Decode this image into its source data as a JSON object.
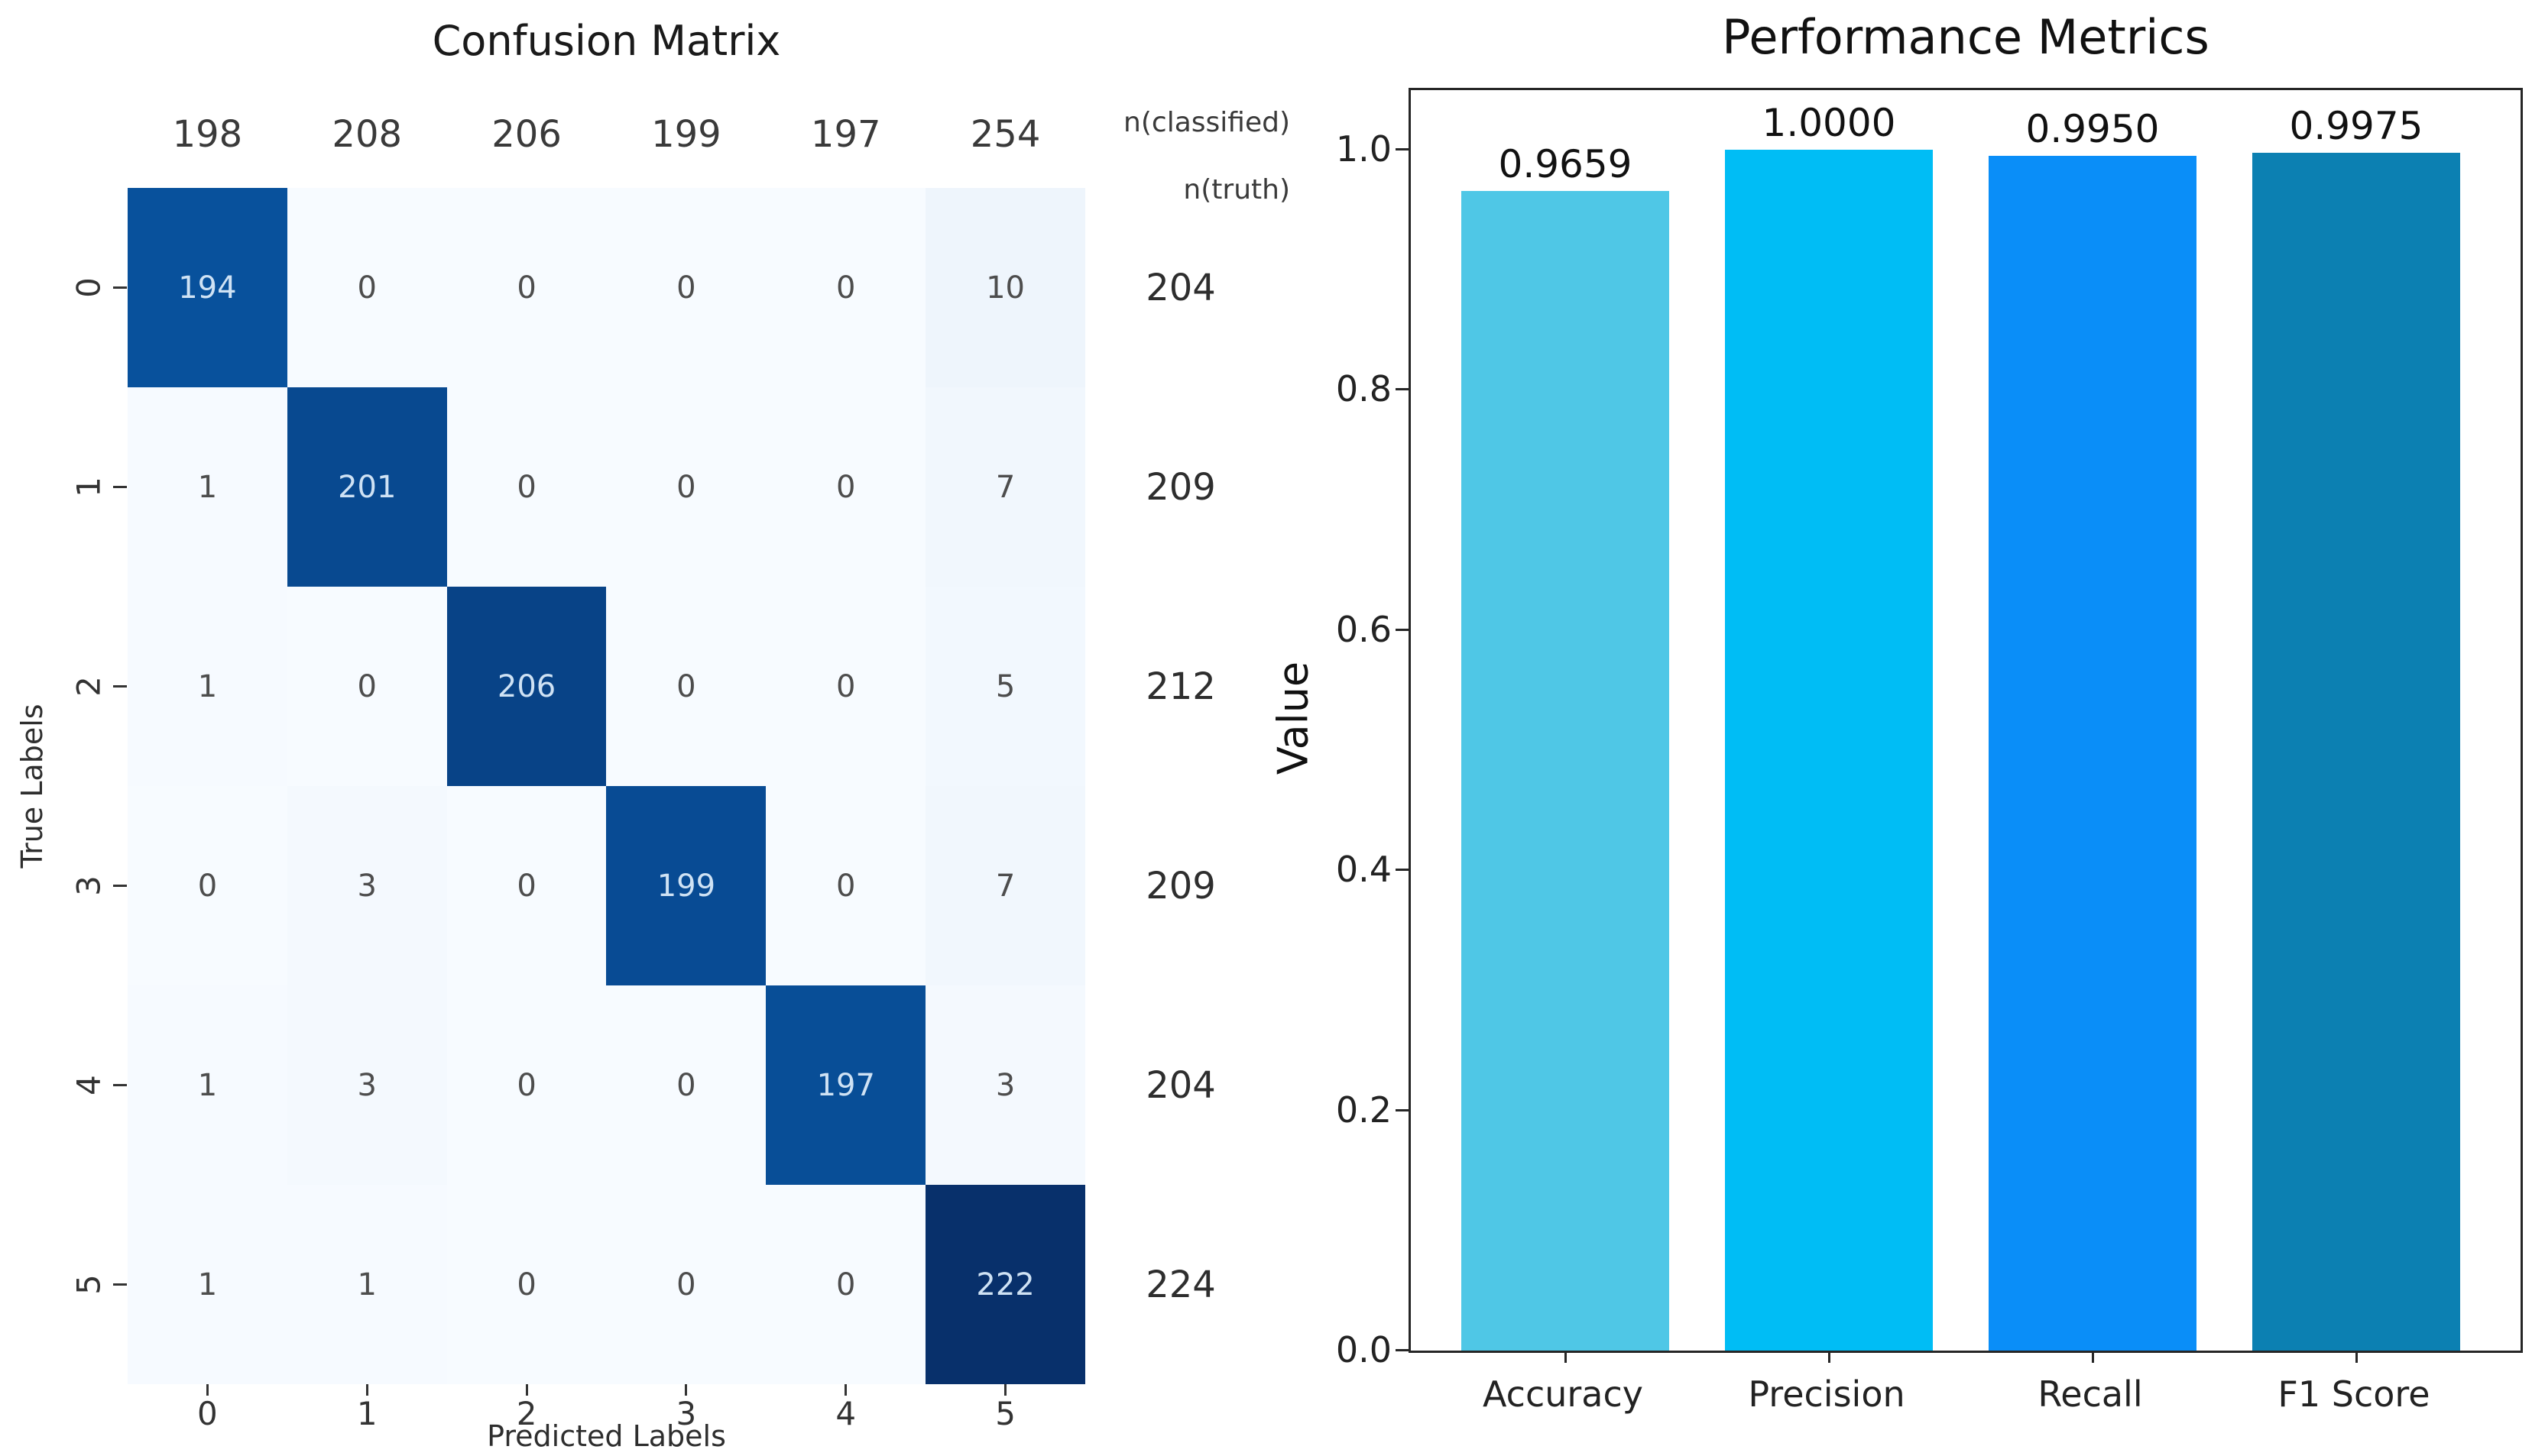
{
  "chart_data": [
    {
      "type": "heatmap",
      "title": "Confusion Matrix",
      "xlabel": "Predicted Labels",
      "ylabel": "True Labels",
      "col_totals_header": "n(classified)",
      "row_totals_header": "n(truth)",
      "x_tick_labels": [
        "0",
        "1",
        "2",
        "3",
        "4",
        "5"
      ],
      "y_tick_labels": [
        "0",
        "1",
        "2",
        "3",
        "4",
        "5"
      ],
      "col_totals": [
        198,
        208,
        206,
        199,
        197,
        254
      ],
      "row_totals": [
        204,
        209,
        212,
        209,
        204,
        224
      ],
      "values": [
        [
          194,
          0,
          0,
          0,
          0,
          10
        ],
        [
          1,
          201,
          0,
          0,
          0,
          7
        ],
        [
          1,
          0,
          206,
          0,
          0,
          5
        ],
        [
          0,
          3,
          0,
          199,
          0,
          7
        ],
        [
          1,
          3,
          0,
          0,
          197,
          3
        ],
        [
          1,
          1,
          0,
          0,
          0,
          222
        ]
      ],
      "colormap": "Blues",
      "colorbar": false
    },
    {
      "type": "bar",
      "title": "Performance Metrics",
      "xlabel": "",
      "ylabel": "Value",
      "categories": [
        "Accuracy",
        "Precision",
        "Recall",
        "F1 Score"
      ],
      "values": [
        0.9659,
        1.0,
        0.995,
        0.9975
      ],
      "bar_labels": [
        "0.9659",
        "1.0000",
        "0.9950",
        "0.9975"
      ],
      "bar_colors": [
        "#4fc7e6",
        "#00bdf5",
        "#0a8ef8",
        "#0c80b2"
      ],
      "y_tick_labels": [
        "0.0",
        "0.2",
        "0.4",
        "0.6",
        "0.8",
        "1.0"
      ],
      "y_tick_values": [
        0.0,
        0.2,
        0.4,
        0.6,
        0.8,
        1.0
      ],
      "ylim": [
        0,
        1.045
      ],
      "grid": false,
      "legend": false
    }
  ]
}
